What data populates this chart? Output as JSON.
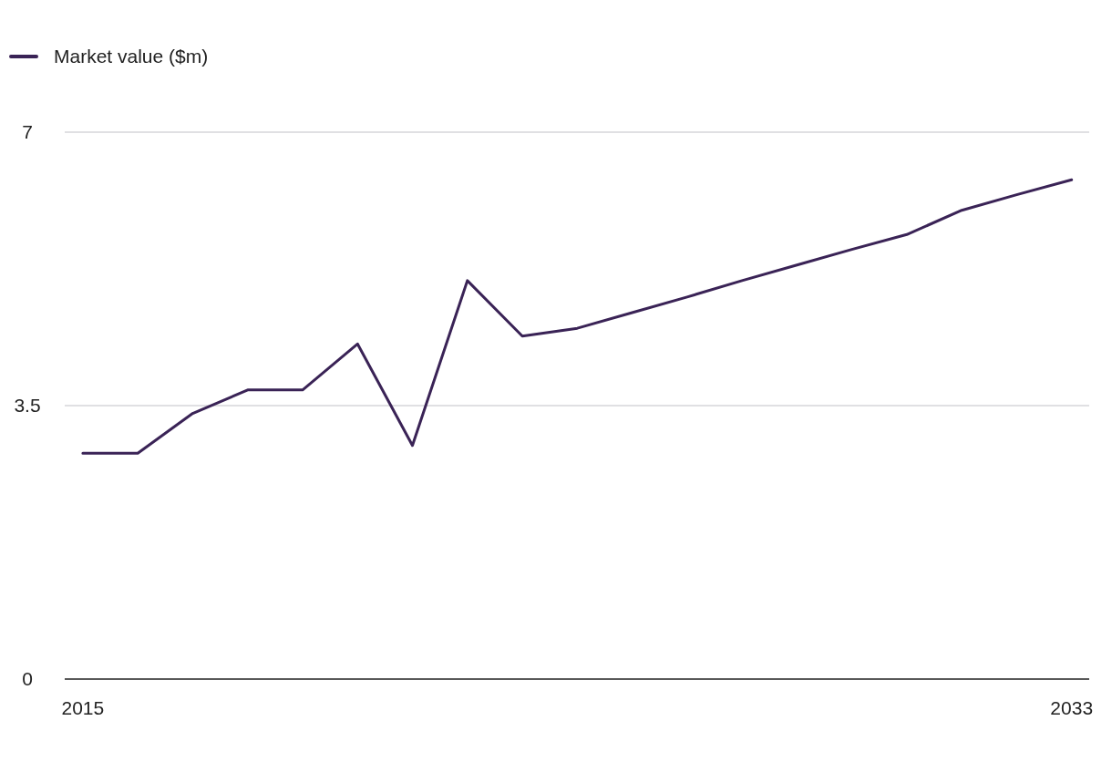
{
  "chart_data": {
    "type": "line",
    "x": [
      2015,
      2016,
      2017,
      2018,
      2019,
      2020,
      2021,
      2022,
      2023,
      2024,
      2025,
      2026,
      2027,
      2028,
      2029,
      2030,
      2031,
      2032,
      2033
    ],
    "series": [
      {
        "name": "Market value ($m)",
        "color": "#3a2356",
        "values": [
          2.89,
          2.89,
          3.4,
          3.7,
          3.7,
          4.29,
          2.99,
          5.1,
          4.39,
          4.49,
          4.69,
          4.89,
          5.1,
          5.3,
          5.5,
          5.69,
          6.0,
          6.2,
          6.39
        ]
      }
    ],
    "xlim": [
      2014.67,
      2033.32
    ],
    "xticks": [
      2015,
      2033
    ],
    "ylim": [
      0,
      7
    ],
    "yticks": [
      0,
      3.5,
      7
    ],
    "grid": "y",
    "legend": "top left",
    "marker": "none",
    "line_style": "solid"
  }
}
